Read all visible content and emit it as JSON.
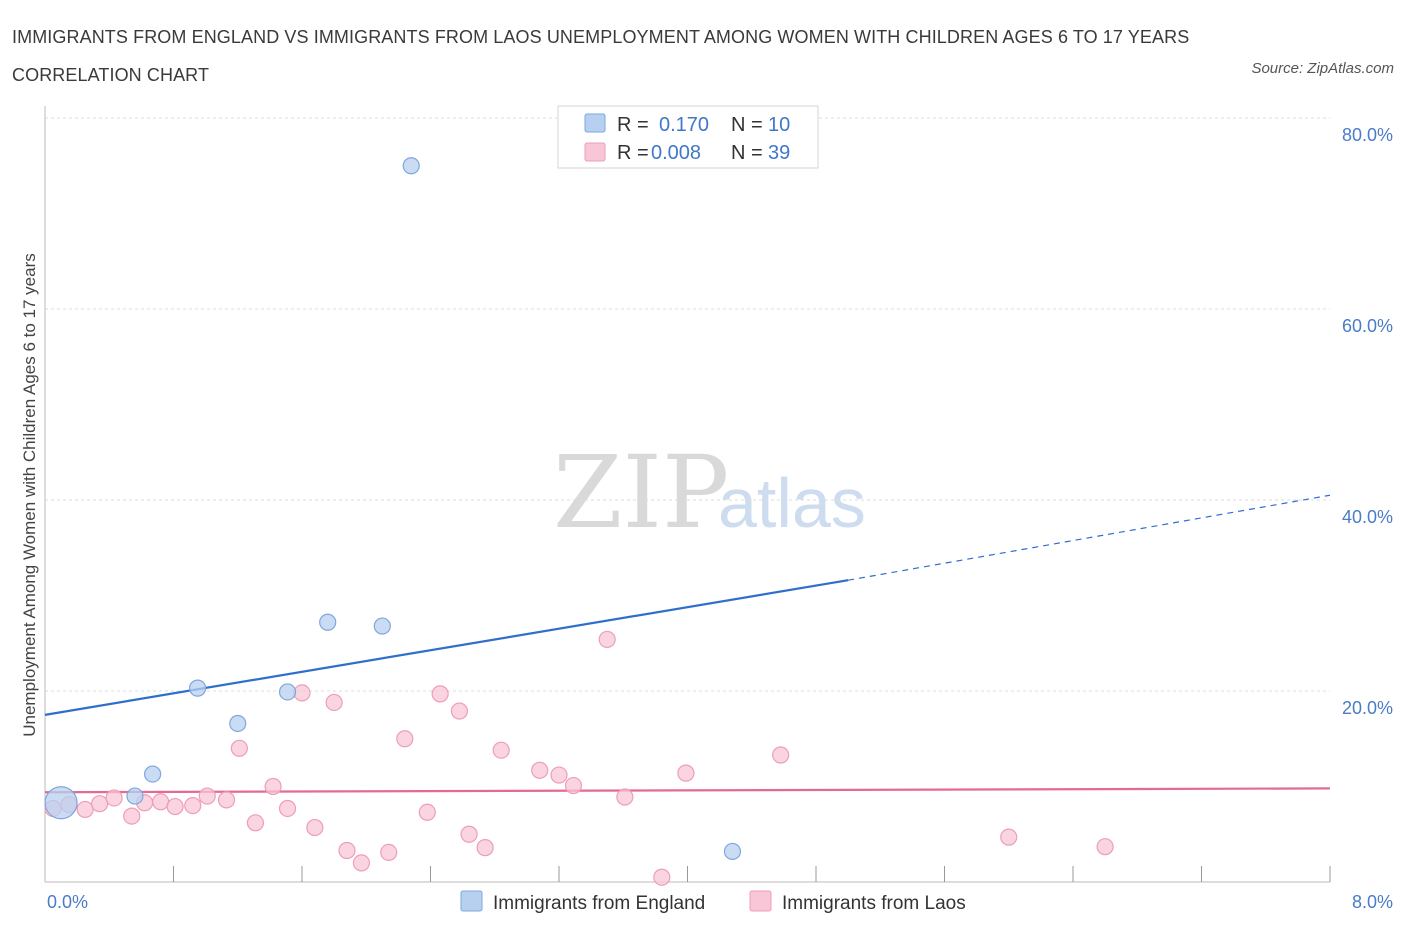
{
  "header": {
    "title": "IMMIGRANTS FROM ENGLAND VS IMMIGRANTS FROM LAOS UNEMPLOYMENT AMONG WOMEN WITH CHILDREN AGES 6 TO 17 YEARS CORRELATION CHART",
    "source": "Source: ZipAtlas.com"
  },
  "watermark": {
    "zip": "ZIP",
    "atlas": "atlas"
  },
  "colors": {
    "england_fill": "#b8d0f0",
    "england_stroke": "#7ea7de",
    "england_line": "#2f6fcb",
    "laos_fill": "#f8c6d6",
    "laos_stroke": "#ee9db8",
    "laos_line": "#e46a93",
    "tick_text": "#4a7cc7",
    "grid": "#dcdcdc"
  },
  "legend": {
    "england": {
      "r_label": "R =",
      "r_value": "0.170",
      "n_label": "N =",
      "n_value": "10"
    },
    "laos": {
      "r_label": "R =",
      "r_value": "0.008",
      "n_label": "N =",
      "n_value": "39"
    }
  },
  "chart_data": {
    "type": "scatter",
    "title": "IMMIGRANTS FROM ENGLAND VS IMMIGRANTS FROM LAOS UNEMPLOYMENT AMONG WOMEN WITH CHILDREN AGES 6 TO 17 YEARS CORRELATION CHART",
    "xlabel": "",
    "ylabel": "Unemployment Among Women with Children Ages 6 to 17 years",
    "xlim": [
      0,
      8
    ],
    "ylim": [
      0,
      80
    ],
    "x_tick_labels": [
      "0.0%",
      "8.0%"
    ],
    "y_ticks": [
      20,
      40,
      60,
      80
    ],
    "y_tick_labels": [
      "20.0%",
      "40.0%",
      "60.0%",
      "80.0%"
    ],
    "grid": true,
    "series": [
      {
        "name": "Immigrants from England",
        "points": [
          {
            "x": 0.1,
            "y": 8.3,
            "large": true
          },
          {
            "x": 0.56,
            "y": 9.0
          },
          {
            "x": 0.67,
            "y": 11.3
          },
          {
            "x": 0.95,
            "y": 20.3
          },
          {
            "x": 1.2,
            "y": 16.6
          },
          {
            "x": 1.51,
            "y": 19.9
          },
          {
            "x": 1.76,
            "y": 27.2
          },
          {
            "x": 2.1,
            "y": 26.8
          },
          {
            "x": 2.28,
            "y": 75.0
          },
          {
            "x": 4.28,
            "y": 3.2
          }
        ],
        "trend": {
          "x0": 0,
          "y0": 17.5,
          "x1": 5.0,
          "y1": 31.6,
          "dash_x1": 8.0,
          "dash_y1": 40.5
        }
      },
      {
        "name": "Immigrants from Laos",
        "points": [
          {
            "x": 0.05,
            "y": 7.7
          },
          {
            "x": 0.15,
            "y": 8.1
          },
          {
            "x": 0.25,
            "y": 7.6
          },
          {
            "x": 0.34,
            "y": 8.2
          },
          {
            "x": 0.43,
            "y": 8.8
          },
          {
            "x": 0.54,
            "y": 6.9
          },
          {
            "x": 0.62,
            "y": 8.3
          },
          {
            "x": 0.72,
            "y": 8.4
          },
          {
            "x": 0.81,
            "y": 7.9
          },
          {
            "x": 0.92,
            "y": 8.0
          },
          {
            "x": 1.01,
            "y": 9.0
          },
          {
            "x": 1.13,
            "y": 8.6
          },
          {
            "x": 1.21,
            "y": 14.0
          },
          {
            "x": 1.31,
            "y": 6.2
          },
          {
            "x": 1.42,
            "y": 10.0
          },
          {
            "x": 1.51,
            "y": 7.7
          },
          {
            "x": 1.6,
            "y": 19.8
          },
          {
            "x": 1.68,
            "y": 5.7
          },
          {
            "x": 1.8,
            "y": 18.8
          },
          {
            "x": 1.88,
            "y": 3.3
          },
          {
            "x": 1.97,
            "y": 2.0
          },
          {
            "x": 2.14,
            "y": 3.1
          },
          {
            "x": 2.24,
            "y": 15.0
          },
          {
            "x": 2.38,
            "y": 7.3
          },
          {
            "x": 2.46,
            "y": 19.7
          },
          {
            "x": 2.58,
            "y": 17.9
          },
          {
            "x": 2.64,
            "y": 5.0
          },
          {
            "x": 2.74,
            "y": 3.6
          },
          {
            "x": 2.84,
            "y": 13.8
          },
          {
            "x": 3.08,
            "y": 11.7
          },
          {
            "x": 3.2,
            "y": 11.2
          },
          {
            "x": 3.29,
            "y": 10.1
          },
          {
            "x": 3.5,
            "y": 25.4
          },
          {
            "x": 3.61,
            "y": 8.9
          },
          {
            "x": 3.84,
            "y": 0.5
          },
          {
            "x": 3.99,
            "y": 11.4
          },
          {
            "x": 4.58,
            "y": 13.3
          },
          {
            "x": 6.0,
            "y": 4.7
          },
          {
            "x": 6.6,
            "y": 3.7
          }
        ],
        "trend": {
          "x0": 0,
          "y0": 9.4,
          "x1": 8.0,
          "y1": 9.8
        }
      }
    ]
  }
}
